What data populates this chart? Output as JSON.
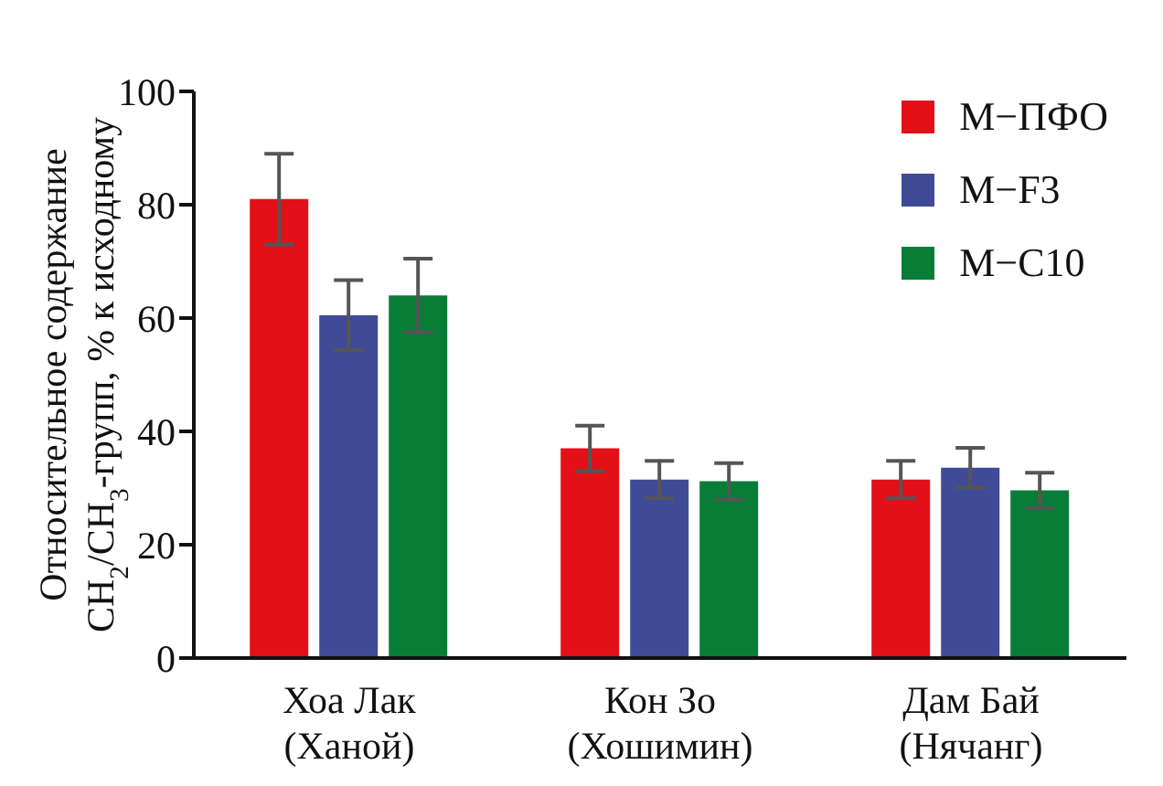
{
  "chart_data": {
    "type": "bar",
    "ylabel": "Относительное содержание\nCH$_{2}$/CH$_{3}$-групп, % к исходному",
    "categories": [
      "Хоа Лак\n(Ханой)",
      "Кон Зо\n(Хошимин)",
      "Дам Бай\n(Нячанг)"
    ],
    "series": [
      {
        "name": "М−ПФО",
        "color": "#e31017",
        "values": [
          81,
          37,
          31.5
        ],
        "errors": [
          8,
          4,
          3.3
        ]
      },
      {
        "name": "М−F3",
        "color": "#3f4b96",
        "values": [
          60.5,
          31.5,
          33.6
        ],
        "errors": [
          6.2,
          3.3,
          3.5
        ]
      },
      {
        "name": "М−C10",
        "color": "#087d37",
        "values": [
          64,
          31.2,
          29.6
        ],
        "errors": [
          6.5,
          3.2,
          3.1
        ]
      }
    ],
    "ylim": [
      0,
      100
    ],
    "yticks": [
      0,
      20,
      40,
      60,
      80,
      100
    ],
    "legend": "top right"
  }
}
